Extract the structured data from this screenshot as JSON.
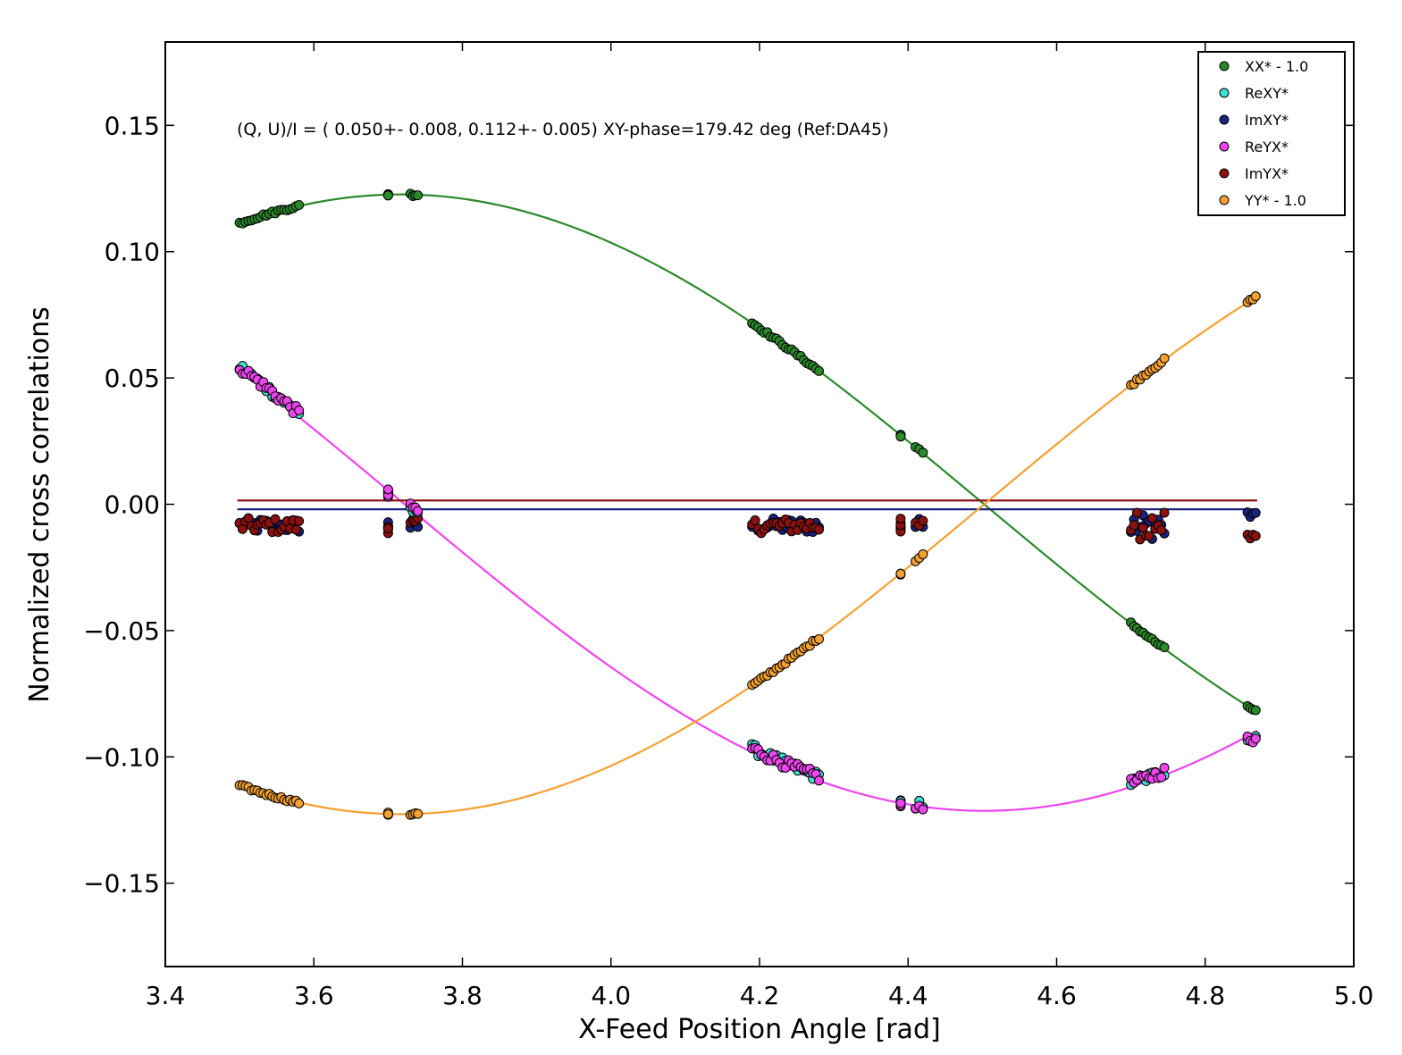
{
  "chart_data": {
    "type": "scatter",
    "xlabel": "X-Feed Position Angle [rad]",
    "ylabel": "Normalized cross correlations",
    "xlim": [
      3.4,
      5.0
    ],
    "ylim": [
      -0.183,
      0.183
    ],
    "xticks": [
      3.4,
      3.6,
      3.8,
      4.0,
      4.2,
      4.4,
      4.6,
      4.8,
      5.0
    ],
    "xtick_labels": [
      "3.4",
      "3.6",
      "3.8",
      "4.0",
      "4.2",
      "4.4",
      "4.6",
      "4.8",
      "5.0"
    ],
    "yticks": [
      -0.15,
      -0.1,
      -0.05,
      0.0,
      0.05,
      0.1,
      0.15
    ],
    "ytick_labels": [
      "−0.15",
      "−0.10",
      "−0.05",
      "0.00",
      "0.05",
      "0.10",
      "0.15"
    ],
    "annotation": "(Q, U)/I = ( 0.050+- 0.008,  0.112+- 0.005) XY-phase=179.42 deg (Ref:DA45)",
    "legend_position": "top-right",
    "grid": false,
    "observation_clusters": [
      [
        3.5,
        3.58
      ],
      [
        3.7,
        3.7
      ],
      [
        3.73,
        3.74
      ],
      [
        4.19,
        4.28
      ],
      [
        4.39,
        4.39
      ],
      [
        4.41,
        4.42
      ],
      [
        4.7,
        4.745
      ],
      [
        4.857,
        4.868
      ]
    ],
    "model": {
      "Q": 0.05,
      "U": 0.112,
      "ReXY_offset": 0.0013,
      "ImXY_level": -0.002,
      "ImYX_level": 0.0015,
      "fit_xrange": [
        3.497,
        4.87
      ]
    },
    "series": [
      {
        "name": "XX* - 1.0",
        "color": "#2a8a2a",
        "kind": "QU_cos_sin"
      },
      {
        "name": "ReXY*",
        "color": "#40e0d0",
        "kind": "UQ_cross"
      },
      {
        "name": "ImXY*",
        "color": "#1a237e",
        "kind": "imag_low"
      },
      {
        "name": "ReYX*",
        "color": "#ee44ee",
        "kind": "UQ_cross"
      },
      {
        "name": "ImYX*",
        "color": "#8b1010",
        "kind": "imag_high"
      },
      {
        "name": "YY* - 1.0",
        "color": "#f5a030",
        "kind": "neg_QU_cos_sin"
      }
    ]
  }
}
